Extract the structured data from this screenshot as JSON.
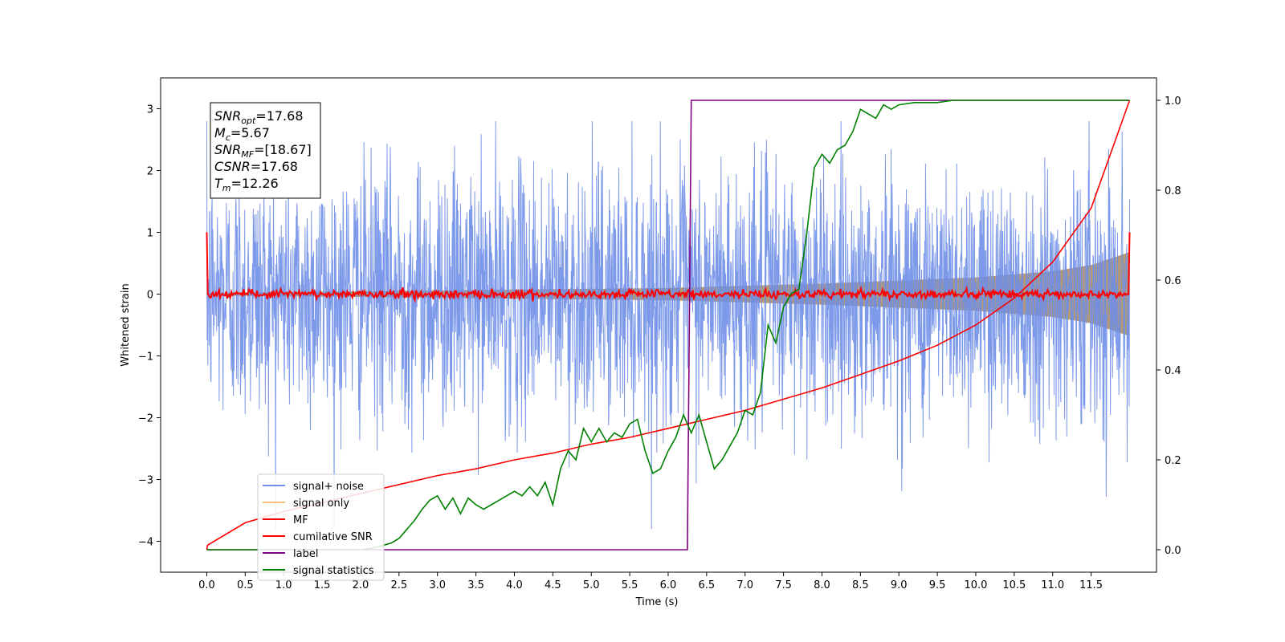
{
  "chart_data": {
    "type": "line",
    "xlabel": "Time (s)",
    "ylabel": "Whitened strain",
    "xlim": [
      -0.6,
      12.35
    ],
    "ylim": [
      -4.5,
      3.5
    ],
    "y2lim": [
      -0.05,
      1.05
    ],
    "grid": false,
    "legend_position": "lower-left",
    "x_ticks": [
      "0.0",
      "0.5",
      "1.0",
      "1.5",
      "2.0",
      "2.5",
      "3.0",
      "3.5",
      "4.0",
      "4.5",
      "5.0",
      "5.5",
      "6.0",
      "6.5",
      "7.0",
      "7.5",
      "8.0",
      "8.5",
      "9.0",
      "9.5",
      "10.0",
      "10.5",
      "11.0",
      "11.5"
    ],
    "y_ticks": [
      3,
      2,
      1,
      0,
      -1,
      -2,
      -3,
      -4
    ],
    "y_tick_labels": [
      "3",
      "2",
      "1",
      "0",
      "−1",
      "−2",
      "−3",
      "−4"
    ],
    "y2_ticks": [
      1.0,
      0.8,
      0.6,
      0.4,
      0.2,
      0.0
    ],
    "y2_tick_labels": [
      "1.0",
      "0.8",
      "0.6",
      "0.4",
      "0.2",
      "0.0"
    ],
    "annotation": {
      "lines": [
        {
          "sym": "SNR",
          "sub": "opt",
          "rest": "=17.68"
        },
        {
          "sym": "M",
          "sub": "c",
          "rest": "=5.67"
        },
        {
          "sym": "SNR",
          "sub": "MF",
          "rest": "=[18.67]"
        },
        {
          "sym": "CSNR",
          "sub": "",
          "rest": "=17.68"
        },
        {
          "sym": "T",
          "sub": "m",
          "rest": "=12.26"
        }
      ]
    },
    "series": [
      {
        "name": "signal+ noise",
        "color": "#6f8ee8",
        "axis": "left",
        "description_stats": {
          "x_range": [
            0.0,
            12.0
          ],
          "typical_amplitude": 1.2,
          "peak_max": 3.1,
          "peak_min": -4.15
        }
      },
      {
        "name": "signal only",
        "color": "#f5c27a",
        "axis": "left",
        "envelope": {
          "x": [
            0.0,
            6.0,
            8.0,
            10.0,
            11.0,
            11.5,
            12.0
          ],
          "amplitude": [
            0.02,
            0.1,
            0.17,
            0.27,
            0.37,
            0.47,
            0.68
          ]
        }
      },
      {
        "name": "MF",
        "color": "#ff0000",
        "axis": "left",
        "description_stats": {
          "x_range": [
            0.0,
            12.0
          ],
          "mean": 0.0,
          "noise_amplitude": 0.08,
          "edge_value": 1.0
        }
      },
      {
        "name": "cumilative SNR",
        "color": "#ff0000",
        "axis": "right",
        "x": [
          0.0,
          0.01,
          0.5,
          1.0,
          1.5,
          2.0,
          2.5,
          3.0,
          3.5,
          4.0,
          4.5,
          5.0,
          5.5,
          6.0,
          6.5,
          7.0,
          7.5,
          8.0,
          8.5,
          9.0,
          9.5,
          10.0,
          10.5,
          11.0,
          11.5,
          12.0
        ],
        "y": [
          0.0,
          0.01,
          0.06,
          0.085,
          0.105,
          0.125,
          0.145,
          0.165,
          0.18,
          0.2,
          0.215,
          0.235,
          0.25,
          0.27,
          0.29,
          0.31,
          0.335,
          0.36,
          0.39,
          0.42,
          0.455,
          0.5,
          0.56,
          0.64,
          0.76,
          1.0
        ]
      },
      {
        "name": "label",
        "color": "#800080",
        "axis": "right",
        "x": [
          0.0,
          6.25,
          6.3,
          12.0
        ],
        "y": [
          0.0,
          0.0,
          1.0,
          1.0
        ]
      },
      {
        "name": "signal statistics",
        "color": "#008000",
        "axis": "right",
        "x": [
          0.0,
          2.0,
          2.2,
          2.4,
          2.5,
          2.6,
          2.7,
          2.8,
          2.9,
          3.0,
          3.1,
          3.2,
          3.3,
          3.4,
          3.5,
          3.6,
          3.7,
          3.8,
          3.9,
          4.0,
          4.1,
          4.2,
          4.3,
          4.4,
          4.5,
          4.6,
          4.7,
          4.8,
          4.9,
          5.0,
          5.1,
          5.2,
          5.3,
          5.4,
          5.5,
          5.6,
          5.7,
          5.8,
          5.9,
          6.0,
          6.1,
          6.2,
          6.3,
          6.4,
          6.5,
          6.6,
          6.7,
          6.8,
          6.9,
          7.0,
          7.1,
          7.2,
          7.3,
          7.4,
          7.5,
          7.6,
          7.7,
          7.8,
          7.9,
          8.0,
          8.1,
          8.2,
          8.3,
          8.4,
          8.5,
          8.6,
          8.7,
          8.8,
          8.9,
          9.0,
          9.2,
          9.5,
          9.7,
          10.0,
          10.5,
          11.0,
          11.5,
          12.0
        ],
        "y": [
          0.0,
          0.0,
          0.005,
          0.015,
          0.025,
          0.045,
          0.065,
          0.09,
          0.11,
          0.12,
          0.09,
          0.115,
          0.08,
          0.115,
          0.1,
          0.09,
          0.1,
          0.11,
          0.12,
          0.13,
          0.12,
          0.14,
          0.12,
          0.15,
          0.1,
          0.18,
          0.22,
          0.2,
          0.27,
          0.24,
          0.27,
          0.24,
          0.26,
          0.25,
          0.28,
          0.29,
          0.22,
          0.17,
          0.18,
          0.22,
          0.25,
          0.3,
          0.26,
          0.3,
          0.24,
          0.18,
          0.2,
          0.23,
          0.26,
          0.31,
          0.3,
          0.35,
          0.5,
          0.46,
          0.54,
          0.57,
          0.58,
          0.7,
          0.85,
          0.88,
          0.86,
          0.89,
          0.9,
          0.93,
          0.98,
          0.97,
          0.96,
          0.99,
          0.98,
          0.99,
          0.995,
          0.995,
          1.0,
          1.0,
          1.0,
          1.0,
          1.0,
          1.0
        ]
      }
    ]
  }
}
